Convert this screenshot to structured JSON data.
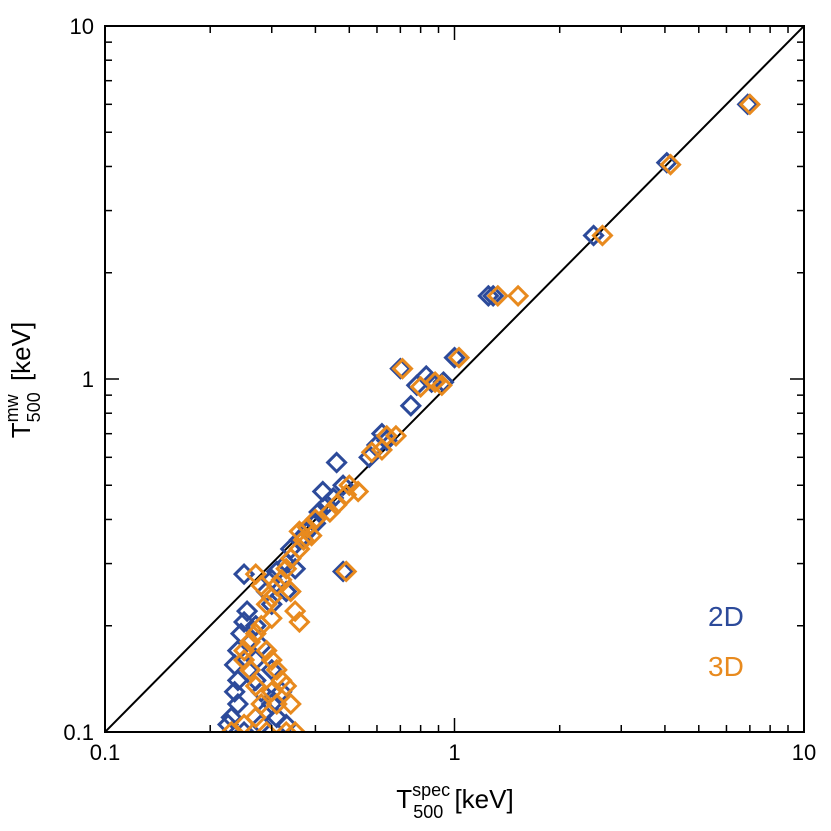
{
  "chart_data": {
    "type": "scatter",
    "title": "",
    "xscale": "log",
    "yscale": "log",
    "xlim": [
      0.1,
      10
    ],
    "ylim": [
      0.1,
      10
    ],
    "xticks": [
      "0.1",
      "1",
      "10"
    ],
    "yticks": [
      "0.1",
      "1",
      "10"
    ],
    "xlabel": {
      "main": "T",
      "sub": "500",
      "sup": "spec",
      "unit": " [keV]"
    },
    "ylabel": {
      "main": "T",
      "sub": "500",
      "sup": "mw",
      "unit": " [keV]"
    },
    "reference_line": "y = x",
    "legend": {
      "position": "bottom-right"
    },
    "series": [
      {
        "name": "2D",
        "color": "#2c4a9a",
        "marker": "diamond",
        "points": [
          [
            6.9,
            6.0
          ],
          [
            4.05,
            4.1
          ],
          [
            2.5,
            2.55
          ],
          [
            1.25,
            1.72
          ],
          [
            1.29,
            1.72
          ],
          [
            1.0,
            1.15
          ],
          [
            0.7,
            1.07
          ],
          [
            0.83,
            1.02
          ],
          [
            0.86,
            0.98
          ],
          [
            0.78,
            0.96
          ],
          [
            0.93,
            0.98
          ],
          [
            0.75,
            0.84
          ],
          [
            0.62,
            0.7
          ],
          [
            0.64,
            0.67
          ],
          [
            0.6,
            0.65
          ],
          [
            0.57,
            0.6
          ],
          [
            0.46,
            0.58
          ],
          [
            0.42,
            0.48
          ],
          [
            0.48,
            0.5
          ],
          [
            0.45,
            0.46
          ],
          [
            0.43,
            0.44
          ],
          [
            0.41,
            0.42
          ],
          [
            0.38,
            0.37
          ],
          [
            0.37,
            0.36
          ],
          [
            0.36,
            0.35
          ],
          [
            0.34,
            0.33
          ],
          [
            0.33,
            0.3
          ],
          [
            0.31,
            0.285
          ],
          [
            0.3,
            0.27
          ],
          [
            0.29,
            0.25
          ],
          [
            0.48,
            0.285
          ],
          [
            0.25,
            0.28
          ],
          [
            0.255,
            0.22
          ],
          [
            0.25,
            0.205
          ],
          [
            0.245,
            0.19
          ],
          [
            0.24,
            0.17
          ],
          [
            0.235,
            0.155
          ],
          [
            0.24,
            0.14
          ],
          [
            0.235,
            0.13
          ],
          [
            0.27,
            0.16
          ],
          [
            0.26,
            0.15
          ],
          [
            0.27,
            0.14
          ],
          [
            0.28,
            0.13
          ],
          [
            0.3,
            0.12
          ],
          [
            0.24,
            0.12
          ],
          [
            0.23,
            0.11
          ],
          [
            0.225,
            0.105
          ],
          [
            0.25,
            0.1
          ],
          [
            0.28,
            0.105
          ],
          [
            0.31,
            0.11
          ],
          [
            0.33,
            0.105
          ],
          [
            0.29,
            0.115
          ],
          [
            0.32,
            0.13
          ],
          [
            0.3,
            0.15
          ],
          [
            0.28,
            0.175
          ],
          [
            0.27,
            0.2
          ],
          [
            0.3,
            0.23
          ],
          [
            0.35,
            0.29
          ],
          [
            0.4,
            0.39
          ],
          [
            0.33,
            0.25
          ]
        ]
      },
      {
        "name": "3D",
        "color": "#e88a1e",
        "marker": "diamond",
        "points": [
          [
            7.0,
            6.0
          ],
          [
            4.15,
            4.05
          ],
          [
            2.65,
            2.55
          ],
          [
            1.33,
            1.72
          ],
          [
            1.52,
            1.72
          ],
          [
            1.03,
            1.15
          ],
          [
            0.71,
            1.07
          ],
          [
            0.88,
            0.98
          ],
          [
            0.92,
            0.96
          ],
          [
            0.8,
            0.95
          ],
          [
            0.68,
            0.69
          ],
          [
            0.64,
            0.69
          ],
          [
            0.62,
            0.63
          ],
          [
            0.58,
            0.62
          ],
          [
            0.53,
            0.48
          ],
          [
            0.5,
            0.5
          ],
          [
            0.49,
            0.47
          ],
          [
            0.46,
            0.44
          ],
          [
            0.44,
            0.42
          ],
          [
            0.4,
            0.4
          ],
          [
            0.38,
            0.38
          ],
          [
            0.37,
            0.35
          ],
          [
            0.36,
            0.33
          ],
          [
            0.34,
            0.31
          ],
          [
            0.33,
            0.29
          ],
          [
            0.32,
            0.27
          ],
          [
            0.31,
            0.26
          ],
          [
            0.3,
            0.24
          ],
          [
            0.29,
            0.23
          ],
          [
            0.36,
            0.205
          ],
          [
            0.49,
            0.285
          ],
          [
            0.27,
            0.28
          ],
          [
            0.28,
            0.26
          ],
          [
            0.34,
            0.25
          ],
          [
            0.35,
            0.22
          ],
          [
            0.3,
            0.21
          ],
          [
            0.28,
            0.2
          ],
          [
            0.27,
            0.19
          ],
          [
            0.26,
            0.18
          ],
          [
            0.25,
            0.17
          ],
          [
            0.25,
            0.16
          ],
          [
            0.26,
            0.15
          ],
          [
            0.29,
            0.17
          ],
          [
            0.3,
            0.16
          ],
          [
            0.31,
            0.15
          ],
          [
            0.32,
            0.14
          ],
          [
            0.3,
            0.13
          ],
          [
            0.28,
            0.12
          ],
          [
            0.27,
            0.11
          ],
          [
            0.25,
            0.105
          ],
          [
            0.23,
            0.1
          ],
          [
            0.29,
            0.1
          ],
          [
            0.33,
            0.1
          ],
          [
            0.35,
            0.1
          ],
          [
            0.31,
            0.12
          ],
          [
            0.34,
            0.12
          ],
          [
            0.33,
            0.135
          ],
          [
            0.27,
            0.135
          ],
          [
            0.36,
            0.37
          ],
          [
            0.39,
            0.36
          ]
        ]
      }
    ]
  }
}
